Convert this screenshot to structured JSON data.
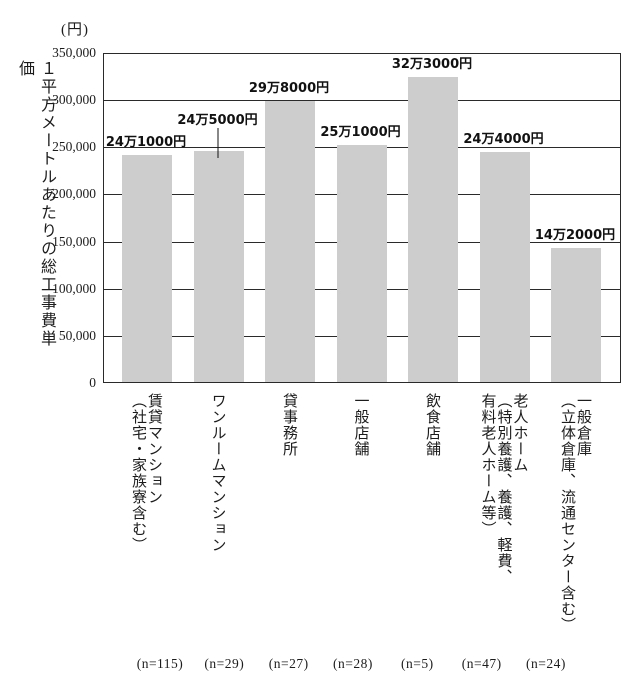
{
  "chart_data": {
    "type": "bar",
    "unit_label": "(円)",
    "y_axis_title": "１平方メートルあたりの総工事費単価",
    "ylabel": "１平方メートルあたりの総工事費単価 (円)",
    "ylim": [
      0,
      350000
    ],
    "y_ticks": [
      "350,000",
      "300,000",
      "250,000",
      "200,000",
      "150,000",
      "100,000",
      "50,000",
      "0"
    ],
    "grid": "horizontal",
    "legend": "none",
    "bar_color": "#cdcdcd",
    "categories": [
      [
        "賃貸マンション",
        "（社宅・家族寮含む）"
      ],
      [
        "ワンルームマンション"
      ],
      [
        "貸事務所"
      ],
      [
        "一般店舗"
      ],
      [
        "飲食店舗"
      ],
      [
        "老人ホーム",
        "（特別養護、養護、軽費、",
        "有料老人ホーム等）"
      ],
      [
        "一般倉庫",
        "（立体倉庫、流通センター含む）"
      ]
    ],
    "values": [
      241000,
      245000,
      298000,
      251000,
      323000,
      244000,
      142000
    ],
    "value_labels": [
      "24万1000円",
      "24万5000円",
      "29万8000円",
      "25万1000円",
      "32万3000円",
      "24万4000円",
      "14万2000円"
    ],
    "label_leader_bars": [
      1
    ],
    "n_labels": [
      "(n=115)",
      "(n=29)",
      "(n=27)",
      "(n=28)",
      "(n=5)",
      "(n=47)",
      "(n=24)"
    ]
  }
}
